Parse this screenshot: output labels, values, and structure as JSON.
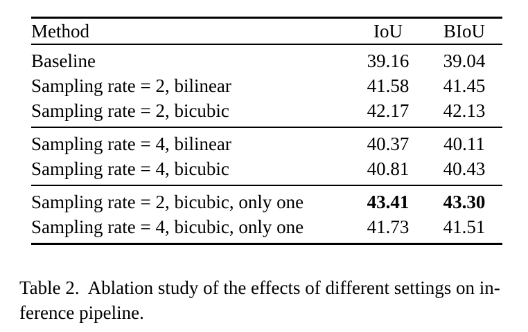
{
  "table": {
    "headers": {
      "method": "Method",
      "iou": "IoU",
      "biou": "BIoU"
    },
    "groups": [
      {
        "rows": [
          {
            "method": "Baseline",
            "iou": "39.16",
            "biou": "39.04"
          },
          {
            "method": "Sampling rate = 2, bilinear",
            "iou": "41.58",
            "biou": "41.45"
          },
          {
            "method": "Sampling rate = 2, bicubic",
            "iou": "42.17",
            "biou": "42.13"
          }
        ]
      },
      {
        "rows": [
          {
            "method": "Sampling rate = 4, bilinear",
            "iou": "40.37",
            "biou": "40.11"
          },
          {
            "method": "Sampling rate = 4, bicubic",
            "iou": "40.81",
            "biou": "40.43"
          }
        ]
      },
      {
        "rows": [
          {
            "method": "Sampling rate = 2, bicubic, only one",
            "iou": "43.41",
            "biou": "43.30",
            "bold": true
          },
          {
            "method": "Sampling rate = 4, bicubic, only one",
            "iou": "41.73",
            "biou": "41.51"
          }
        ]
      }
    ]
  },
  "caption": {
    "line1": "Table 2.  Ablation study of the effects of different settings on in-",
    "line2": "ference pipeline."
  },
  "colors": {
    "text": "#000000",
    "background": "#ffffff",
    "rule": "#000000"
  }
}
